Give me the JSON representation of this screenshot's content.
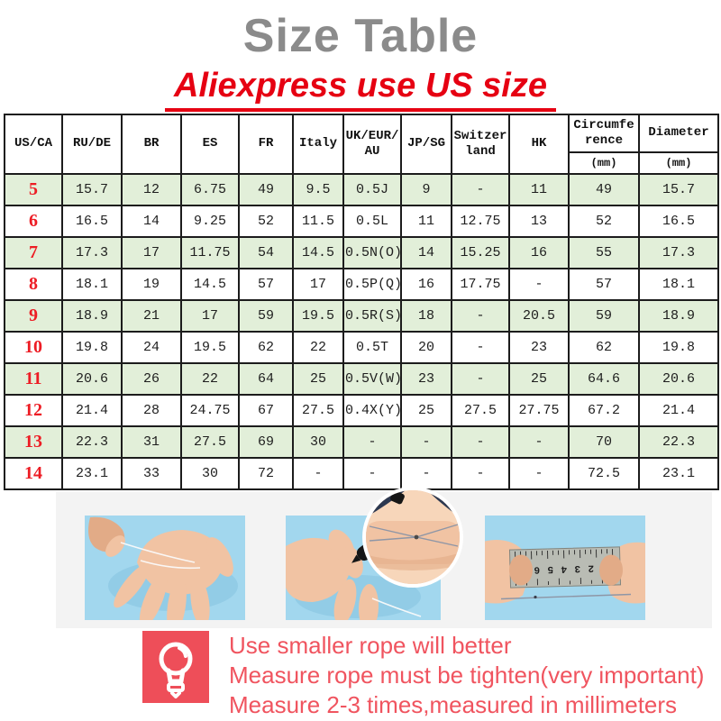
{
  "header": {
    "title": "Size Table",
    "subtitle": "Aliexpress use US size"
  },
  "size_table": {
    "columns": [
      {
        "label": "US/CA"
      },
      {
        "label": "RU/DE"
      },
      {
        "label": "BR"
      },
      {
        "label": "ES"
      },
      {
        "label": "FR"
      },
      {
        "label": "Italy"
      },
      {
        "label": "UK/EUR/AU"
      },
      {
        "label": "JP/SG"
      },
      {
        "label": "Switzerland"
      },
      {
        "label": "HK"
      },
      {
        "label": "Circumference",
        "unit": "(mm)"
      },
      {
        "label": "Diameter",
        "unit": "(mm)"
      }
    ],
    "rows": [
      [
        "5",
        "15.7",
        "12",
        "6.75",
        "49",
        "9.5",
        "0.5J",
        "9",
        "-",
        "11",
        "49",
        "15.7"
      ],
      [
        "6",
        "16.5",
        "14",
        "9.25",
        "52",
        "11.5",
        "0.5L",
        "11",
        "12.75",
        "13",
        "52",
        "16.5"
      ],
      [
        "7",
        "17.3",
        "17",
        "11.75",
        "54",
        "14.5",
        "0.5N(O)",
        "14",
        "15.25",
        "16",
        "55",
        "17.3"
      ],
      [
        "8",
        "18.1",
        "19",
        "14.5",
        "57",
        "17",
        "0.5P(Q)",
        "16",
        "17.75",
        "-",
        "57",
        "18.1"
      ],
      [
        "9",
        "18.9",
        "21",
        "17",
        "59",
        "19.5",
        "0.5R(S)",
        "18",
        "-",
        "20.5",
        "59",
        "18.9"
      ],
      [
        "10",
        "19.8",
        "24",
        "19.5",
        "62",
        "22",
        "0.5T",
        "20",
        "-",
        "23",
        "62",
        "19.8"
      ],
      [
        "11",
        "20.6",
        "26",
        "22",
        "64",
        "25",
        "0.5V(W)",
        "23",
        "-",
        "25",
        "64.6",
        "20.6"
      ],
      [
        "12",
        "21.4",
        "28",
        "24.75",
        "67",
        "27.5",
        "0.4X(Y)",
        "25",
        "27.5",
        "27.75",
        "67.2",
        "21.4"
      ],
      [
        "13",
        "22.3",
        "31",
        "27.5",
        "69",
        "30",
        "-",
        "-",
        "-",
        "-",
        "70",
        "22.3"
      ],
      [
        "14",
        "23.1",
        "33",
        "30",
        "72",
        "-",
        "-",
        "-",
        "-",
        "-",
        "72.5",
        "23.1"
      ]
    ]
  },
  "photos": {
    "ruler_scale_numbers": "1234567"
  },
  "notes": {
    "icon": "lightbulb-icon",
    "lines": [
      "Use smaller rope will better",
      "Measure rope must be tighten(very important)",
      "Measure 2-3 times,measured in millimeters"
    ]
  },
  "colors": {
    "title_gray": "#8b8b8b",
    "accent_red": "#e60012",
    "size_red": "#ed1c24",
    "row_green": "#e2efd9",
    "note_red": "#f0545f",
    "icon_red": "#ee4e59",
    "table_border": "#1c1c1c",
    "photo_blue": "#a2d7ee",
    "strip_gray": "#f3f3f3"
  }
}
